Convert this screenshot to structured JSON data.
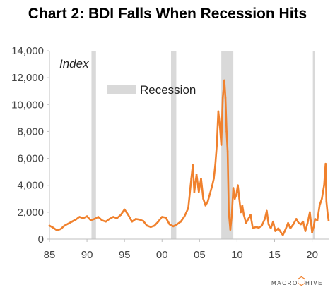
{
  "chart_title": "Chart 2: BDI Falls When Recession Hits",
  "brand": {
    "left": "MACRO",
    "right": "HIVE"
  },
  "colors": {
    "series": "#F0812D",
    "recession": "#D9D9D9",
    "axis": "#BFBFBF",
    "text": "#444444"
  },
  "chart_data": {
    "type": "line",
    "title": "Chart 2: BDI Falls When Recession Hits",
    "ylabel_annotation": "Index",
    "ylim": [
      0,
      14000
    ],
    "xlim": [
      1985,
      2022.3
    ],
    "y_ticks": [
      0,
      2000,
      4000,
      6000,
      8000,
      10000,
      12000,
      14000
    ],
    "y_tick_labels": [
      "0",
      "2,000",
      "4,000",
      "6,000",
      "8,000",
      "10,000",
      "12,000",
      "14,000"
    ],
    "x_ticks": [
      1985,
      1990,
      1995,
      2000,
      2005,
      2010,
      2015,
      2020
    ],
    "x_tick_labels": [
      "85",
      "90",
      "95",
      "00",
      "05",
      "10",
      "15",
      "20"
    ],
    "grid": false,
    "legend": [
      {
        "name": "Recession",
        "placement": "upper-left"
      }
    ],
    "recessions": [
      [
        1990.6,
        1991.2
      ],
      [
        2001.2,
        2001.9
      ],
      [
        2007.9,
        2009.5
      ],
      [
        2020.1,
        2020.4
      ]
    ],
    "series": [
      {
        "x": [
          1985,
          1985.5,
          1986,
          1986.5,
          1987,
          1987.5,
          1988,
          1988.5,
          1989,
          1989.5,
          1990,
          1990.5,
          1991,
          1991.5,
          1992,
          1992.5,
          1993,
          1993.5,
          1994,
          1994.5,
          1995,
          1995.5,
          1996,
          1996.5,
          1997,
          1997.5,
          1998,
          1998.5,
          1999,
          1999.5,
          2000,
          2000.5,
          2001,
          2001.5,
          2002,
          2002.5,
          2003,
          2003.5,
          2003.9,
          2004.1,
          2004.3,
          2004.6,
          2004.9,
          2005.2,
          2005.5,
          2005.8,
          2006.1,
          2006.4,
          2006.7,
          2006.9,
          2007.1,
          2007.3,
          2007.5,
          2007.7,
          2007.9,
          2008.1,
          2008.3,
          2008.45,
          2008.6,
          2008.75,
          2008.9,
          2009.1,
          2009.3,
          2009.5,
          2009.7,
          2009.9,
          2010.1,
          2010.3,
          2010.5,
          2010.7,
          2010.9,
          2011.2,
          2011.5,
          2011.8,
          2012.1,
          2012.5,
          2012.9,
          2013.3,
          2013.7,
          2013.95,
          2014.2,
          2014.5,
          2014.8,
          2015.1,
          2015.5,
          2015.9,
          2016.1,
          2016.4,
          2016.8,
          2017.1,
          2017.5,
          2017.9,
          2018.2,
          2018.5,
          2018.8,
          2019.1,
          2019.4,
          2019.7,
          2020.0,
          2020.2,
          2020.4,
          2020.7,
          2021.0,
          2021.3,
          2021.6,
          2021.8,
          2021.9,
          2022.05,
          2022.2
        ],
        "values": [
          1000,
          850,
          650,
          750,
          1000,
          1150,
          1300,
          1450,
          1650,
          1550,
          1700,
          1400,
          1500,
          1650,
          1400,
          1300,
          1500,
          1650,
          1550,
          1800,
          2200,
          1800,
          1300,
          1500,
          1450,
          1350,
          1000,
          900,
          1000,
          1300,
          1650,
          1600,
          1100,
          950,
          1100,
          1300,
          1700,
          2300,
          4500,
          5500,
          3500,
          4800,
          3500,
          4500,
          3000,
          2500,
          2800,
          3400,
          4000,
          4500,
          5500,
          7000,
          9500,
          8500,
          7000,
          10500,
          11800,
          10500,
          8000,
          6500,
          2000,
          700,
          1800,
          3800,
          3000,
          3300,
          4000,
          3000,
          2000,
          2500,
          1800,
          1200,
          1500,
          1800,
          800,
          900,
          850,
          1000,
          1500,
          2100,
          1100,
          800,
          1300,
          600,
          800,
          450,
          300,
          650,
          1200,
          800,
          1100,
          1500,
          1200,
          1100,
          1300,
          600,
          1200,
          2000,
          500,
          900,
          1500,
          1400,
          2500,
          3000,
          4000,
          5600,
          2800,
          2000,
          1400
        ]
      }
    ]
  }
}
